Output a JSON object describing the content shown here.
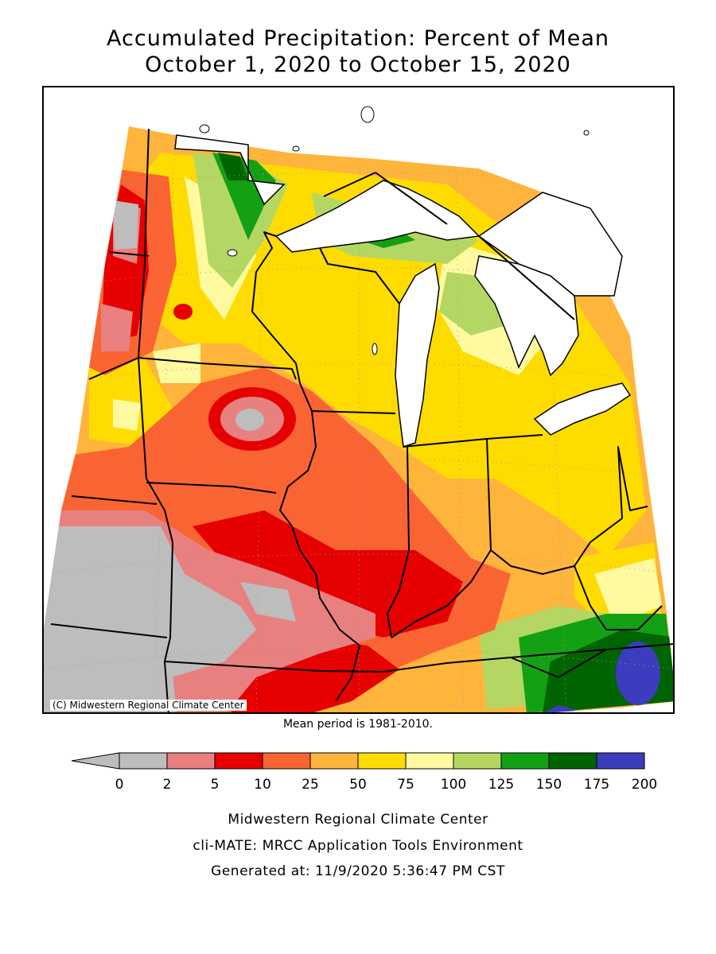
{
  "title": {
    "line1": "Accumulated Precipitation: Percent of Mean",
    "line2": "October 1, 2020 to October 15, 2020"
  },
  "map": {
    "credit": "(C) Midwestern Regional Climate Center",
    "mean_period": "Mean period is 1981-2010."
  },
  "legend": {
    "ticks": [
      "0",
      "2",
      "5",
      "10",
      "25",
      "50",
      "75",
      "100",
      "125",
      "150",
      "175",
      "200"
    ],
    "colors": [
      "#bdbdbd",
      "#e88080",
      "#e60000",
      "#fa6432",
      "#ffb43c",
      "#ffdc00",
      "#fffaa0",
      "#b4d764",
      "#14a014",
      "#006400",
      "#3c3cbe"
    ]
  },
  "palette": {
    "gray": "#bdbdbd",
    "pink": "#e88080",
    "red": "#e60000",
    "orange_red": "#fa6432",
    "orange": "#ffb43c",
    "yellow": "#ffdc00",
    "pale_yellow": "#fffaa0",
    "light_green": "#b4d764",
    "green": "#14a014",
    "dark_green": "#006400",
    "blue": "#3c3cbe"
  },
  "footer": {
    "line1": "Midwestern Regional Climate Center",
    "line2": "cli-MATE: MRCC Application Tools Environment",
    "line3": "Generated at: 11/9/2020 5:36:47 PM CST"
  }
}
